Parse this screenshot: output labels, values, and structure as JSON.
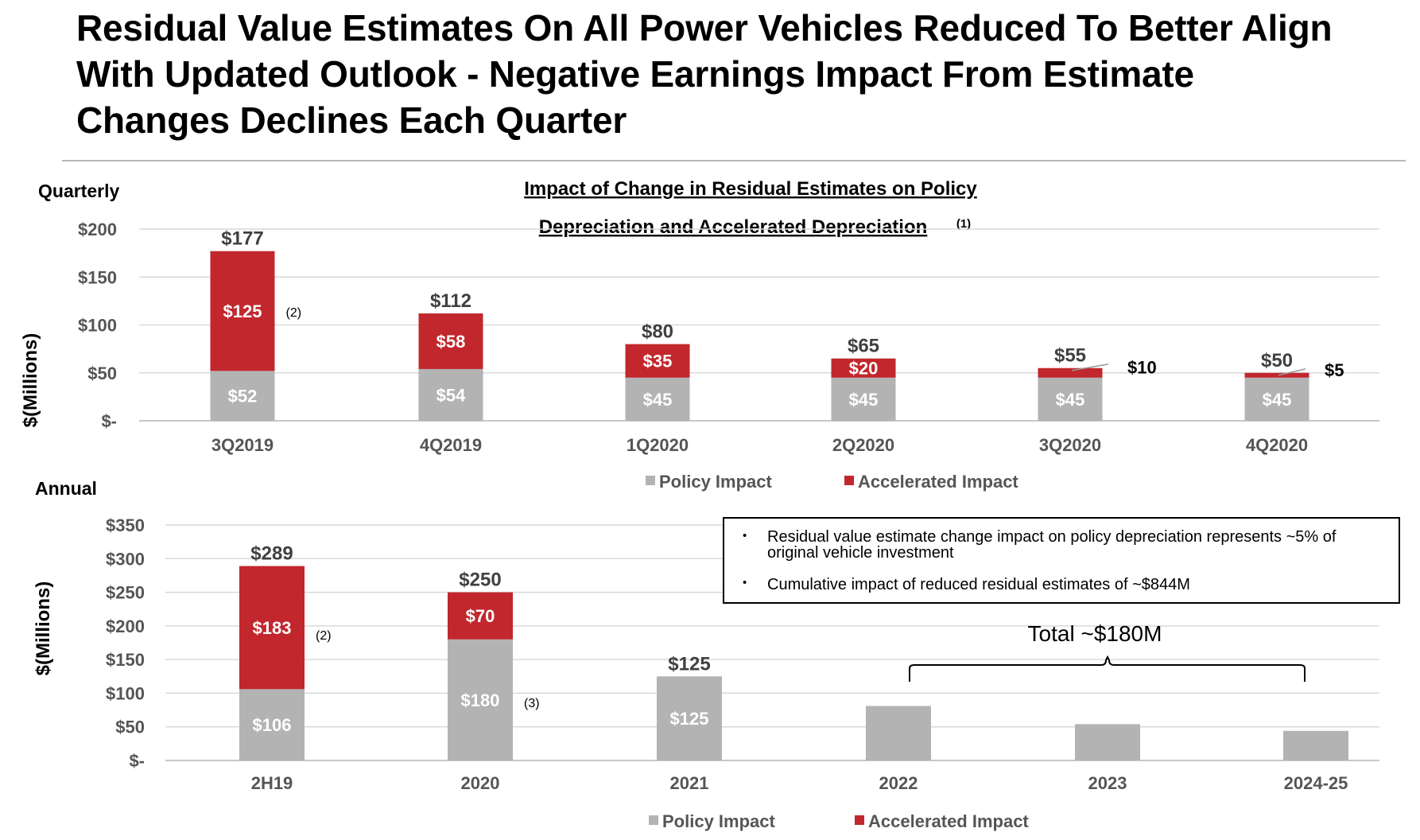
{
  "title_lines": [
    "Residual Value Estimates On All Power Vehicles Reduced To Better Align",
    "With Updated Outlook - Negative Earnings Impact From Estimate",
    "Changes Declines Each Quarter"
  ],
  "colors": {
    "policy": "#b3b3b3",
    "accelerated": "#c1272d",
    "grid": "#d9d9d9",
    "axis_text": "#555555"
  },
  "chart_heading": {
    "line1": "Impact of Change in Residual Estimates on Policy",
    "line2": "Depreciation and Accelerated Depreciation",
    "footnote": "(1)"
  },
  "notes_box": {
    "bullet": "•",
    "items": [
      "Residual value estimate change impact on policy depreciation represents ~5% of original vehicle investment",
      "Cumulative impact of reduced residual estimates of ~$844M"
    ]
  },
  "brace_label": "Total ~$180M",
  "chart_data": [
    {
      "type": "bar",
      "stacked": true,
      "section_label": "Quarterly",
      "ylabel": "$(Millions)",
      "ylim": [
        0,
        200
      ],
      "yticks": [
        {
          "value": 0,
          "label": "$-"
        },
        {
          "value": 50,
          "label": "$50"
        },
        {
          "value": 100,
          "label": "$100"
        },
        {
          "value": 150,
          "label": "$150"
        },
        {
          "value": 200,
          "label": "$200"
        }
      ],
      "categories": [
        "3Q2019",
        "4Q2019",
        "1Q2020",
        "2Q2020",
        "3Q2020",
        "4Q2020"
      ],
      "series": [
        {
          "name": "Policy Impact",
          "values": [
            52,
            54,
            45,
            45,
            45,
            45
          ],
          "labels": [
            "$52",
            "$54",
            "$45",
            "$45",
            "$45",
            "$45"
          ]
        },
        {
          "name": "Accelerated Impact",
          "values": [
            125,
            58,
            35,
            20,
            10,
            5
          ],
          "labels": [
            "$125",
            "$58",
            "$35",
            "$20",
            "$10",
            "$5"
          ]
        }
      ],
      "totals": [
        "$177",
        "$112",
        "$80",
        "$65",
        "$55",
        "$50"
      ],
      "footnotes": [
        "(2)",
        "",
        "",
        "",
        "",
        ""
      ],
      "grid": true,
      "legend": "bottom-center"
    },
    {
      "type": "bar",
      "stacked": true,
      "section_label": "Annual",
      "ylabel": "$(Millions)",
      "ylim": [
        0,
        350
      ],
      "yticks": [
        {
          "value": 0,
          "label": "$-"
        },
        {
          "value": 50,
          "label": "$50"
        },
        {
          "value": 100,
          "label": "$100"
        },
        {
          "value": 150,
          "label": "$150"
        },
        {
          "value": 200,
          "label": "$200"
        },
        {
          "value": 250,
          "label": "$250"
        },
        {
          "value": 300,
          "label": "$300"
        },
        {
          "value": 350,
          "label": "$350"
        }
      ],
      "categories": [
        "2H19",
        "2020",
        "2021",
        "2022",
        "2023",
        "2024-25"
      ],
      "series": [
        {
          "name": "Policy Impact",
          "values": [
            106,
            180,
            125,
            81,
            54,
            44
          ],
          "labels": [
            "$106",
            "$180",
            "$125",
            "",
            "",
            ""
          ]
        },
        {
          "name": "Accelerated Impact",
          "values": [
            183,
            70,
            0,
            0,
            0,
            0
          ],
          "labels": [
            "$183",
            "$70",
            "",
            "",
            "",
            ""
          ]
        }
      ],
      "totals": [
        "$289",
        "$250",
        "$125",
        "",
        "",
        ""
      ],
      "footnotes": [
        "(2)",
        "(3)",
        "",
        "",
        "",
        ""
      ],
      "grid": true,
      "legend": "bottom-center"
    }
  ]
}
